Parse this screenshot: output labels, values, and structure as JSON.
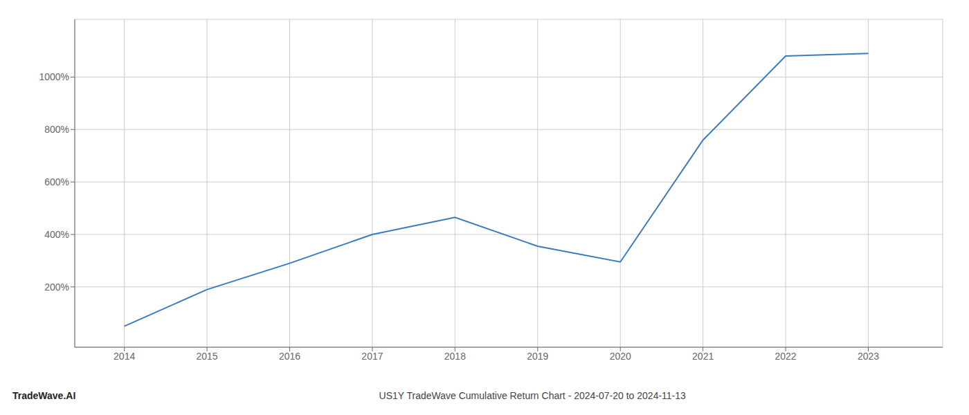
{
  "chart_data": {
    "type": "line",
    "x": [
      2014,
      2015,
      2016,
      2017,
      2018,
      2019,
      2020,
      2021,
      2022,
      2023
    ],
    "values": [
      50,
      190,
      290,
      400,
      465,
      355,
      295,
      760,
      1080,
      1090
    ],
    "color": "#3a7abf",
    "xlim": [
      2013.4,
      2023.9
    ],
    "xticks": [
      2014,
      2015,
      2016,
      2017,
      2018,
      2019,
      2020,
      2021,
      2022,
      2023
    ],
    "ylim": [
      -30,
      1220
    ],
    "yticks": [
      {
        "value": 200,
        "label": "200%"
      },
      {
        "value": 400,
        "label": "400%"
      },
      {
        "value": 600,
        "label": "600%"
      },
      {
        "value": 800,
        "label": "800%"
      },
      {
        "value": 1000,
        "label": "1000%"
      }
    ],
    "grid": true,
    "annotations": [
      "TradeWave.AI",
      "US1Y TradeWave Cumulative Return Chart - 2024-07-20 to 2024-11-13"
    ]
  }
}
